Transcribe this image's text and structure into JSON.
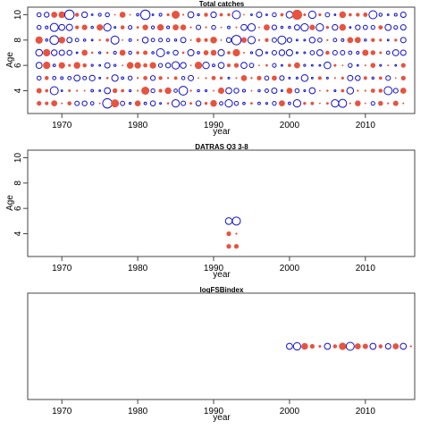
{
  "chart_data": [
    {
      "type": "scatter",
      "title": "Total catches",
      "xlabel": "year",
      "ylabel": "Age",
      "xlim": [
        1965.5,
        2016.5
      ],
      "ylim": [
        2.2,
        10.6
      ],
      "xticks": [
        1970,
        1980,
        1990,
        2000,
        2010
      ],
      "yticks": [
        4,
        6,
        8,
        10
      ],
      "colors": {
        "positive": "#e8533f",
        "negative": "#1010d0"
      },
      "pattern": {
        "x_range": [
          1967,
          2015
        ],
        "y_range": [
          3,
          10
        ],
        "note": "residual bubbles for every year and age 3-10; sizes and signs vary"
      },
      "points": [
        {
          "x": 1967,
          "y": 10,
          "s": 0.3,
          "pos": false
        },
        {
          "x": 1969,
          "y": 10,
          "s": 0.45,
          "pos": true
        },
        {
          "x": 1970,
          "y": 10,
          "s": 0.5,
          "pos": true
        },
        {
          "x": 1971,
          "y": 10,
          "s": 0.7,
          "pos": false
        },
        {
          "x": 1976,
          "y": 10,
          "s": 0.3,
          "pos": false
        },
        {
          "x": 1978,
          "y": 10,
          "s": 0.45,
          "pos": true
        },
        {
          "x": 1981,
          "y": 10,
          "s": 0.7,
          "pos": false
        },
        {
          "x": 1985,
          "y": 10,
          "s": 0.6,
          "pos": true
        },
        {
          "x": 1987,
          "y": 10,
          "s": 0.45,
          "pos": false
        },
        {
          "x": 1989,
          "y": 10,
          "s": 0.3,
          "pos": true
        },
        {
          "x": 1993,
          "y": 10,
          "s": 0.6,
          "pos": false
        },
        {
          "x": 1996,
          "y": 10,
          "s": 0.4,
          "pos": false
        },
        {
          "x": 2000,
          "y": 10,
          "s": 0.5,
          "pos": false
        },
        {
          "x": 2001,
          "y": 10,
          "s": 0.75,
          "pos": true
        },
        {
          "x": 2003,
          "y": 10,
          "s": 0.55,
          "pos": false
        },
        {
          "x": 2007,
          "y": 10,
          "s": 0.5,
          "pos": true
        },
        {
          "x": 2011,
          "y": 10,
          "s": 0.6,
          "pos": false
        },
        {
          "x": 2015,
          "y": 10,
          "s": 0.4,
          "pos": false
        },
        {
          "x": 1967,
          "y": 9,
          "s": 0.3,
          "pos": false
        },
        {
          "x": 1969,
          "y": 9,
          "s": 0.6,
          "pos": false
        },
        {
          "x": 1976,
          "y": 9,
          "s": 0.55,
          "pos": false
        },
        {
          "x": 1985,
          "y": 9,
          "s": 0.45,
          "pos": true
        },
        {
          "x": 1990,
          "y": 9,
          "s": 0.3,
          "pos": false
        },
        {
          "x": 1995,
          "y": 9,
          "s": 0.55,
          "pos": false
        },
        {
          "x": 2002,
          "y": 9,
          "s": 0.55,
          "pos": false
        },
        {
          "x": 2004,
          "y": 9,
          "s": 0.55,
          "pos": false
        },
        {
          "x": 2007,
          "y": 9,
          "s": 0.5,
          "pos": true
        },
        {
          "x": 2015,
          "y": 9,
          "s": 0.4,
          "pos": false
        },
        {
          "x": 1967,
          "y": 8,
          "s": 0.55,
          "pos": true
        },
        {
          "x": 1969,
          "y": 8,
          "s": 0.65,
          "pos": false
        },
        {
          "x": 1970,
          "y": 8,
          "s": 0.5,
          "pos": true
        },
        {
          "x": 1977,
          "y": 8,
          "s": 0.6,
          "pos": false
        },
        {
          "x": 1990,
          "y": 8,
          "s": 0.5,
          "pos": true
        },
        {
          "x": 1993,
          "y": 8,
          "s": 0.7,
          "pos": false
        },
        {
          "x": 1995,
          "y": 8,
          "s": 0.55,
          "pos": false
        },
        {
          "x": 1999,
          "y": 8,
          "s": 0.6,
          "pos": false
        },
        {
          "x": 2008,
          "y": 8,
          "s": 0.45,
          "pos": true
        },
        {
          "x": 2015,
          "y": 8,
          "s": 0.4,
          "pos": false
        },
        {
          "x": 1967,
          "y": 7,
          "s": 0.5,
          "pos": false
        },
        {
          "x": 1968,
          "y": 7,
          "s": 0.55,
          "pos": true
        },
        {
          "x": 1970,
          "y": 7,
          "s": 0.4,
          "pos": false
        },
        {
          "x": 1978,
          "y": 7,
          "s": 0.45,
          "pos": true
        },
        {
          "x": 1983,
          "y": 7,
          "s": 0.6,
          "pos": false
        },
        {
          "x": 1993,
          "y": 7,
          "s": 0.55,
          "pos": true
        },
        {
          "x": 1996,
          "y": 7,
          "s": 0.5,
          "pos": false
        },
        {
          "x": 2004,
          "y": 7,
          "s": 0.45,
          "pos": false
        },
        {
          "x": 2015,
          "y": 7,
          "s": 0.4,
          "pos": false
        },
        {
          "x": 1967,
          "y": 6,
          "s": 0.45,
          "pos": false
        },
        {
          "x": 1968,
          "y": 6,
          "s": 0.55,
          "pos": true
        },
        {
          "x": 1972,
          "y": 6,
          "s": 0.5,
          "pos": true
        },
        {
          "x": 1979,
          "y": 6,
          "s": 0.5,
          "pos": true
        },
        {
          "x": 1985,
          "y": 6,
          "s": 0.55,
          "pos": false
        },
        {
          "x": 1988,
          "y": 6,
          "s": 0.55,
          "pos": true
        },
        {
          "x": 1994,
          "y": 6,
          "s": 0.45,
          "pos": false
        },
        {
          "x": 2001,
          "y": 6,
          "s": 0.45,
          "pos": true
        },
        {
          "x": 2005,
          "y": 6,
          "s": 0.5,
          "pos": false
        },
        {
          "x": 2015,
          "y": 6,
          "s": 0.35,
          "pos": true
        },
        {
          "x": 1967,
          "y": 5,
          "s": 0.3,
          "pos": false
        },
        {
          "x": 1972,
          "y": 5,
          "s": 0.45,
          "pos": false
        },
        {
          "x": 1979,
          "y": 5,
          "s": 0.3,
          "pos": false
        },
        {
          "x": 1987,
          "y": 5,
          "s": 0.4,
          "pos": false
        },
        {
          "x": 1994,
          "y": 5,
          "s": 0.45,
          "pos": true
        },
        {
          "x": 2002,
          "y": 5,
          "s": 0.5,
          "pos": false
        },
        {
          "x": 2008,
          "y": 5,
          "s": 0.4,
          "pos": false
        },
        {
          "x": 2015,
          "y": 5,
          "s": 0.35,
          "pos": true
        },
        {
          "x": 1967,
          "y": 4,
          "s": 0.4,
          "pos": true
        },
        {
          "x": 1969,
          "y": 4,
          "s": 0.6,
          "pos": false
        },
        {
          "x": 1976,
          "y": 4,
          "s": 0.45,
          "pos": false
        },
        {
          "x": 1981,
          "y": 4,
          "s": 0.6,
          "pos": true
        },
        {
          "x": 1984,
          "y": 4,
          "s": 0.5,
          "pos": true
        },
        {
          "x": 1986,
          "y": 4,
          "s": 0.65,
          "pos": false
        },
        {
          "x": 1992,
          "y": 4,
          "s": 0.45,
          "pos": false
        },
        {
          "x": 1998,
          "y": 4,
          "s": 0.4,
          "pos": false
        },
        {
          "x": 2000,
          "y": 4,
          "s": 0.45,
          "pos": true
        },
        {
          "x": 2008,
          "y": 4,
          "s": 0.5,
          "pos": false
        },
        {
          "x": 2013,
          "y": 4,
          "s": 0.6,
          "pos": false
        },
        {
          "x": 2015,
          "y": 4,
          "s": 0.45,
          "pos": true
        },
        {
          "x": 1967,
          "y": 3,
          "s": 0.35,
          "pos": true
        },
        {
          "x": 1969,
          "y": 3,
          "s": 0.45,
          "pos": true
        },
        {
          "x": 1976,
          "y": 3,
          "s": 0.7,
          "pos": false
        },
        {
          "x": 1977,
          "y": 3,
          "s": 0.6,
          "pos": true
        },
        {
          "x": 1985,
          "y": 3,
          "s": 0.55,
          "pos": false
        },
        {
          "x": 1990,
          "y": 3,
          "s": 0.5,
          "pos": true
        },
        {
          "x": 1992,
          "y": 3,
          "s": 0.55,
          "pos": false
        },
        {
          "x": 1999,
          "y": 3,
          "s": 0.45,
          "pos": true
        },
        {
          "x": 2001,
          "y": 3,
          "s": 0.55,
          "pos": false
        },
        {
          "x": 2006,
          "y": 3,
          "s": 0.55,
          "pos": false
        },
        {
          "x": 2007,
          "y": 3,
          "s": 0.6,
          "pos": false
        },
        {
          "x": 2014,
          "y": 3,
          "s": 0.4,
          "pos": true
        }
      ]
    },
    {
      "type": "scatter",
      "title": "DATRAS Q3 3-8",
      "xlabel": "year",
      "ylabel": "Age",
      "xlim": [
        1965.5,
        2016.5
      ],
      "ylim": [
        2.2,
        10.6
      ],
      "xticks": [
        1970,
        1980,
        1990,
        2000,
        2010
      ],
      "yticks": [
        4,
        6,
        8,
        10
      ],
      "colors": {
        "positive": "#e8533f",
        "negative": "#1010d0"
      },
      "points": [
        {
          "x": 1992,
          "y": 5,
          "s": 0.5,
          "pos": false
        },
        {
          "x": 1993,
          "y": 5,
          "s": 0.6,
          "pos": false
        },
        {
          "x": 1992,
          "y": 4,
          "s": 0.35,
          "pos": true
        },
        {
          "x": 1993,
          "y": 4,
          "s": 0.15,
          "pos": true
        },
        {
          "x": 1992,
          "y": 3,
          "s": 0.35,
          "pos": true
        },
        {
          "x": 1993,
          "y": 3,
          "s": 0.35,
          "pos": true
        }
      ]
    },
    {
      "type": "scatter",
      "title": "logFSBindex",
      "xlabel": "year",
      "ylabel": "",
      "xlim": [
        1965.5,
        2016.5
      ],
      "ylim": [
        0,
        1
      ],
      "xticks": [
        1970,
        1980,
        1990,
        2000,
        2010
      ],
      "yticks": [],
      "colors": {
        "positive": "#e8533f",
        "negative": "#1010d0"
      },
      "points": [
        {
          "x": 2000,
          "y": 0.5,
          "s": 0.45,
          "pos": false
        },
        {
          "x": 2001,
          "y": 0.5,
          "s": 0.55,
          "pos": false
        },
        {
          "x": 2002,
          "y": 0.5,
          "s": 0.5,
          "pos": true
        },
        {
          "x": 2003,
          "y": 0.5,
          "s": 0.35,
          "pos": true
        },
        {
          "x": 2004,
          "y": 0.5,
          "s": 0.2,
          "pos": true
        },
        {
          "x": 2005,
          "y": 0.5,
          "s": 0.45,
          "pos": false
        },
        {
          "x": 2006,
          "y": 0.5,
          "s": 0.3,
          "pos": true
        },
        {
          "x": 2007,
          "y": 0.5,
          "s": 0.55,
          "pos": true
        },
        {
          "x": 2008,
          "y": 0.5,
          "s": 0.6,
          "pos": false
        },
        {
          "x": 2009,
          "y": 0.5,
          "s": 0.45,
          "pos": true
        },
        {
          "x": 2010,
          "y": 0.5,
          "s": 0.4,
          "pos": true
        },
        {
          "x": 2011,
          "y": 0.5,
          "s": 0.45,
          "pos": false
        },
        {
          "x": 2012,
          "y": 0.5,
          "s": 0.3,
          "pos": true
        },
        {
          "x": 2013,
          "y": 0.5,
          "s": 0.4,
          "pos": false
        },
        {
          "x": 2014,
          "y": 0.5,
          "s": 0.45,
          "pos": true
        },
        {
          "x": 2015,
          "y": 0.5,
          "s": 0.45,
          "pos": false
        },
        {
          "x": 2016,
          "y": 0.5,
          "s": 0.15,
          "pos": true
        }
      ]
    }
  ]
}
